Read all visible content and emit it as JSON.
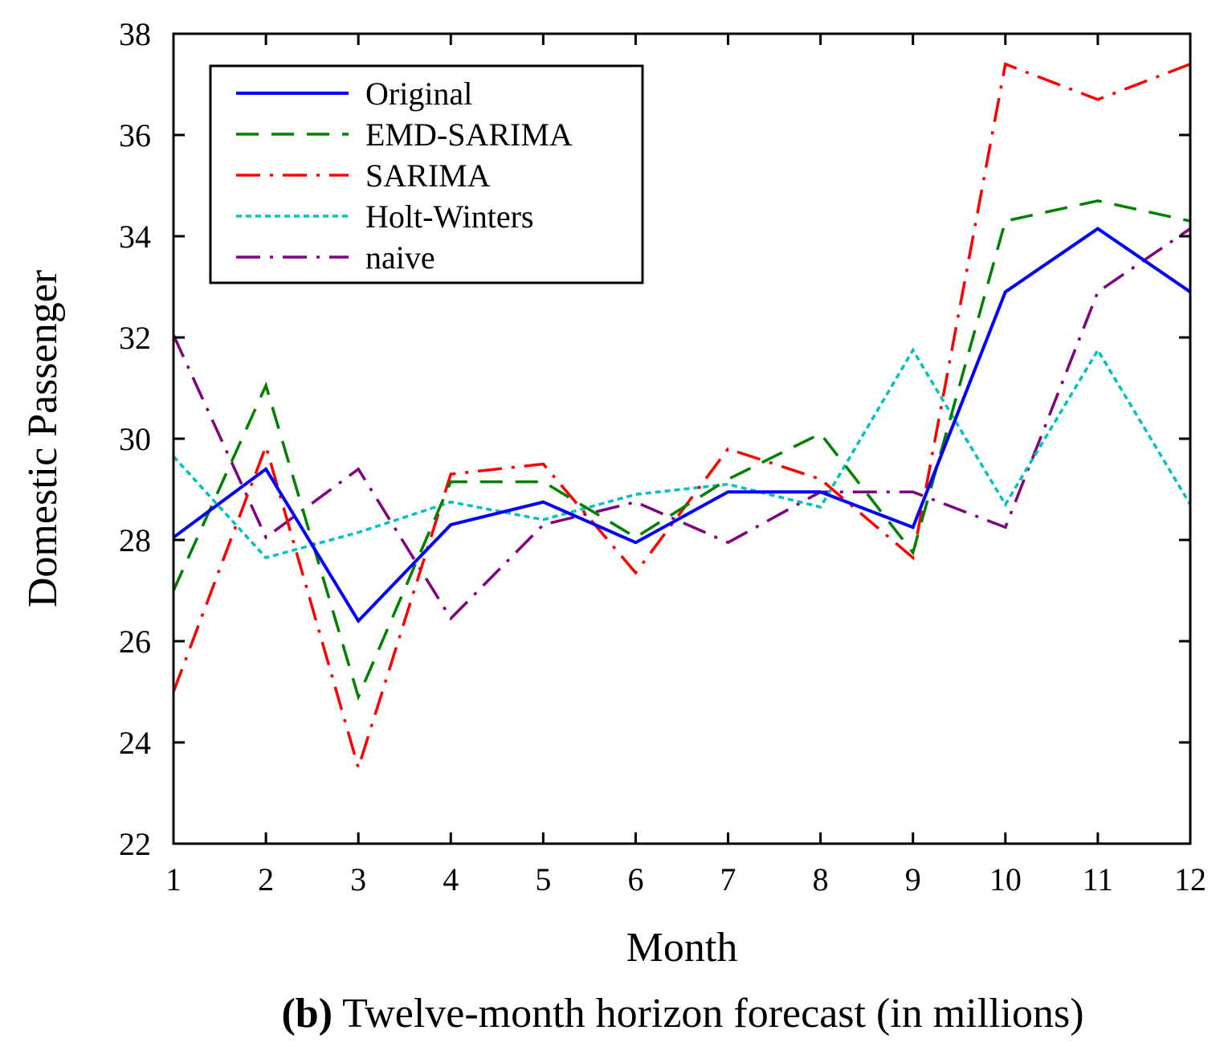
{
  "chart_data": {
    "type": "line",
    "xlabel": "Month",
    "ylabel": "Domestic Passenger",
    "caption": {
      "label": "(b)",
      "text": " Twelve-month horizon forecast (in millions)"
    },
    "xlim": [
      1,
      12
    ],
    "ylim": [
      22,
      38
    ],
    "xticks": [
      1,
      2,
      3,
      4,
      5,
      6,
      7,
      8,
      9,
      10,
      11,
      12
    ],
    "yticks": [
      22,
      24,
      26,
      28,
      30,
      32,
      34,
      36,
      38
    ],
    "x": [
      1,
      2,
      3,
      4,
      5,
      6,
      7,
      8,
      9,
      10,
      11,
      12
    ],
    "grid": false,
    "legend_position": "top-left",
    "series": [
      {
        "name": "Original",
        "color": "#0000ff",
        "dash": "solid",
        "values": [
          28.05,
          29.4,
          26.4,
          28.3,
          28.75,
          27.95,
          28.95,
          28.95,
          28.25,
          32.9,
          34.15,
          32.9
        ]
      },
      {
        "name": "EMD-SARIMA",
        "color": "#008000",
        "dash": "dashed",
        "values": [
          27.0,
          31.05,
          24.9,
          29.15,
          29.15,
          28.05,
          29.2,
          30.1,
          27.75,
          34.3,
          34.7,
          34.3
        ]
      },
      {
        "name": "SARIMA",
        "color": "#ff0000",
        "dash": "dashdot",
        "values": [
          25.0,
          29.85,
          23.5,
          29.3,
          29.5,
          27.35,
          29.8,
          29.2,
          27.65,
          37.4,
          36.7,
          37.4
        ]
      },
      {
        "name": "Holt-Winters",
        "color": "#00c0c0",
        "dash": "dotted",
        "values": [
          29.65,
          27.65,
          28.15,
          28.75,
          28.4,
          28.9,
          29.1,
          28.65,
          31.75,
          28.7,
          31.75,
          28.7
        ]
      },
      {
        "name": "naive",
        "color": "#800080",
        "dash": "dashdot",
        "values": [
          32.05,
          28.05,
          29.4,
          26.45,
          28.3,
          28.75,
          27.95,
          28.95,
          28.95,
          28.25,
          32.9,
          34.15
        ]
      }
    ]
  }
}
